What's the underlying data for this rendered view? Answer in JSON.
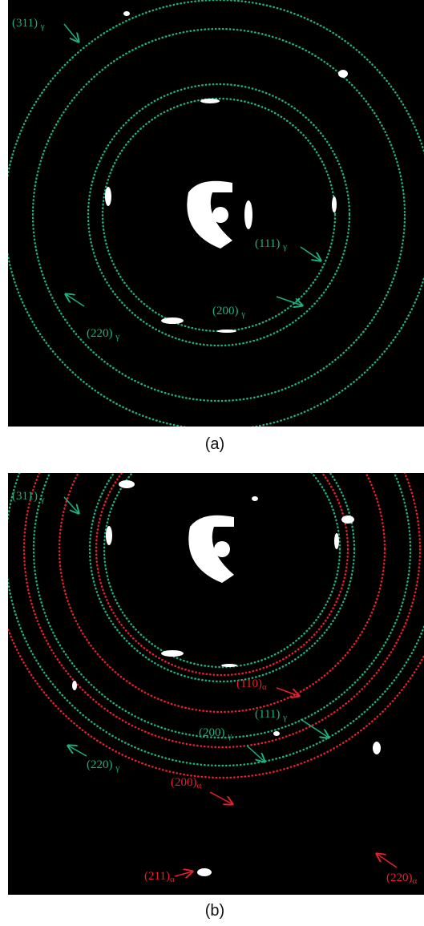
{
  "panels": [
    {
      "caption": "(a)",
      "labels": [
        {
          "text": "(311)",
          "sub": "γ"
        },
        {
          "text": "(111)",
          "sub": "γ"
        },
        {
          "text": "(200)",
          "sub": "γ"
        },
        {
          "text": "(220)",
          "sub": "γ"
        }
      ]
    },
    {
      "caption": "(b)",
      "labels": [
        {
          "text": "(311)",
          "sub": "γ"
        },
        {
          "text": "(111)",
          "sub": "γ"
        },
        {
          "text": "(110)",
          "sub": "α"
        },
        {
          "text": "(200)",
          "sub": "γ"
        },
        {
          "text": "(220)",
          "sub": "γ"
        },
        {
          "text": "(200)",
          "sub": "α"
        },
        {
          "text": "(211)",
          "sub": "α"
        },
        {
          "text": "(220)",
          "sub": "α"
        }
      ]
    }
  ]
}
